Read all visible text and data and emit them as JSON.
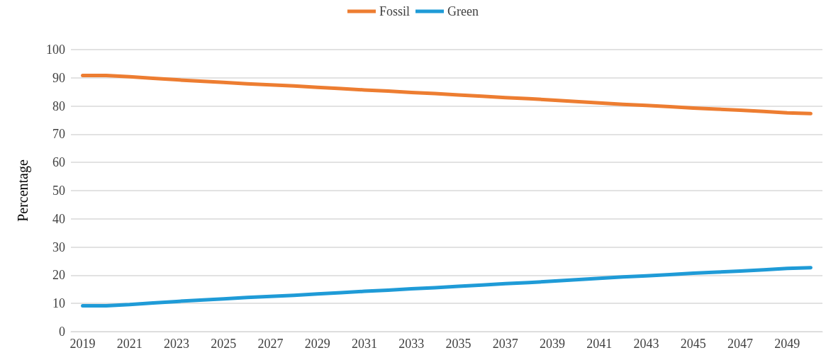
{
  "chart_data": {
    "type": "line",
    "ylabel": "Percentage",
    "categories": [
      "2019",
      null,
      "2021",
      null,
      "2023",
      null,
      "2025",
      null,
      "2027",
      null,
      "2029",
      null,
      "2031",
      null,
      "2033",
      null,
      "2035",
      null,
      "2037",
      null,
      "2039",
      null,
      "2041",
      null,
      "2043",
      null,
      "2045",
      null,
      "2047",
      null,
      "2049",
      null
    ],
    "series": [
      {
        "name": "Fossil",
        "color": "#ed7d31",
        "values": [
          90.8,
          90.8,
          90.4,
          89.8,
          89.3,
          88.8,
          88.4,
          87.9,
          87.5,
          87.1,
          86.6,
          86.2,
          85.7,
          85.3,
          84.8,
          84.4,
          83.9,
          83.5,
          83.0,
          82.6,
          82.1,
          81.6,
          81.1,
          80.6,
          80.2,
          79.8,
          79.3,
          78.9,
          78.5,
          78.1,
          77.6,
          77.3
        ]
      },
      {
        "name": "Green",
        "color": "#1f9bd7",
        "values": [
          9.2,
          9.2,
          9.6,
          10.2,
          10.7,
          11.2,
          11.6,
          12.1,
          12.5,
          12.9,
          13.4,
          13.8,
          14.3,
          14.7,
          15.2,
          15.6,
          16.1,
          16.5,
          17.0,
          17.4,
          17.9,
          18.4,
          18.9,
          19.4,
          19.8,
          20.2,
          20.7,
          21.1,
          21.5,
          21.9,
          22.4,
          22.7
        ]
      }
    ],
    "ylim": [
      0,
      100
    ],
    "yticks": [
      0,
      10,
      20,
      30,
      40,
      50,
      60,
      70,
      80,
      90,
      100
    ],
    "grid": "y",
    "legend": "top",
    "marker": "none",
    "line_style": "solid"
  }
}
